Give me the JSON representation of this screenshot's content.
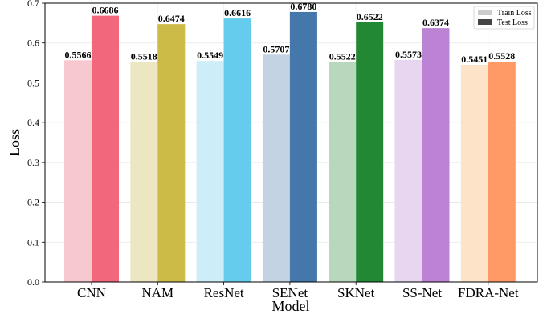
{
  "chart_data": {
    "type": "bar",
    "title": "",
    "xlabel": "Model",
    "ylabel": "Loss",
    "ylim": [
      0,
      0.7
    ],
    "yticks": [
      "0.0",
      "0.1",
      "0.2",
      "0.3",
      "0.4",
      "0.5",
      "0.6",
      "0.7"
    ],
    "grid": true,
    "legend_position": "top-right",
    "categories": [
      "CNN",
      "NAM",
      "ResNet",
      "SENet",
      "SKNet",
      "SS-Net",
      "FDRA-Net"
    ],
    "series": [
      {
        "name": "Train Loss",
        "values": [
          0.5566,
          0.5518,
          0.5549,
          0.5707,
          0.5522,
          0.5573,
          0.5451
        ],
        "labels": [
          "0.5566",
          "0.5518",
          "0.5549",
          "0.5707",
          "0.5522",
          "0.5573",
          "0.5451"
        ],
        "colors": [
          "#f8c8d1",
          "#ede6c2",
          "#cdeef8",
          "#c3d3e3",
          "#b8d8bd",
          "#e8d6f0",
          "#fde3c8"
        ],
        "legend_color": "#cccccc"
      },
      {
        "name": "Test Loss",
        "values": [
          0.6686,
          0.6474,
          0.6616,
          0.678,
          0.6522,
          0.6374,
          0.5528
        ],
        "labels": [
          "0.6686",
          "0.6474",
          "0.6616",
          "0.6780",
          "0.6522",
          "0.6374",
          "0.5528"
        ],
        "colors": [
          "#f1687c",
          "#cdbb47",
          "#65ccee",
          "#4477aa",
          "#228833",
          "#bc83d4",
          "#ff9966"
        ],
        "legend_color": "#444444"
      }
    ]
  }
}
